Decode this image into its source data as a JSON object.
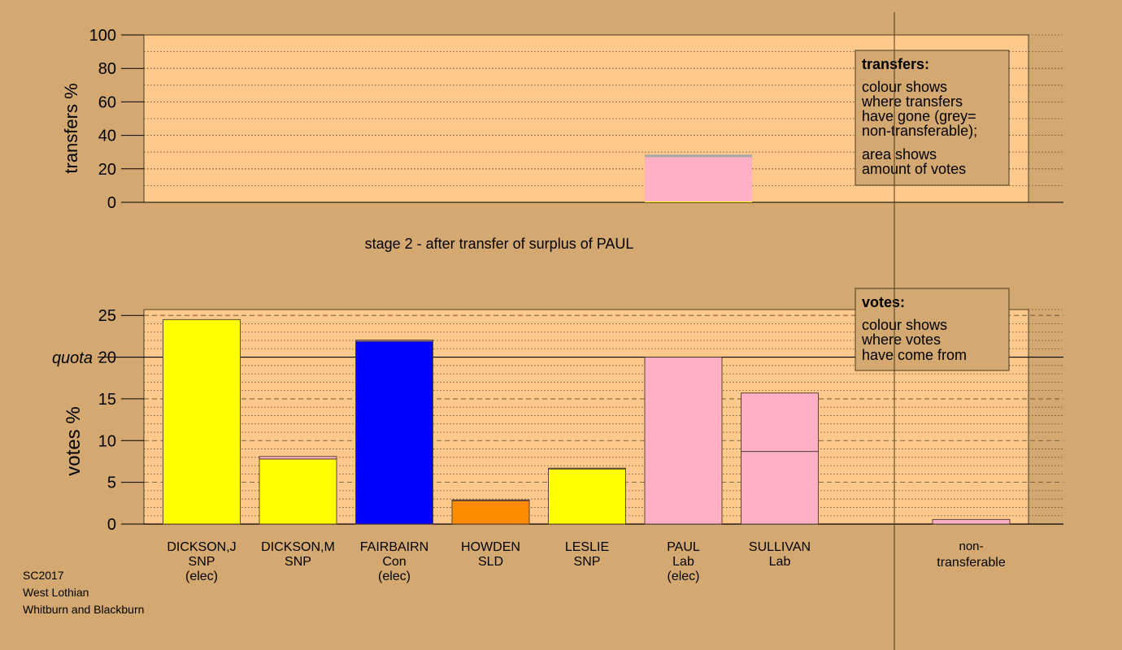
{
  "chart_data": [
    {
      "type": "bar",
      "title": "stage 2 - after transfer of surplus of PAUL",
      "ylabel": "transfers %",
      "ylim": [
        0,
        100
      ],
      "yticks": [
        0,
        20,
        40,
        60,
        80,
        100
      ],
      "grid": true,
      "bars": [
        {
          "index": 5,
          "segments": [
            {
              "name": "yellow",
              "value": 0.5,
              "color": "#ffff00"
            },
            {
              "name": "pink",
              "value": 26.5,
              "color": "#ffb0c4"
            },
            {
              "name": "grey",
              "value": 1.5,
              "color": "#a8a8a8"
            }
          ]
        }
      ],
      "legend": {
        "title": "transfers:",
        "lines1": [
          "colour shows",
          "where transfers",
          "have gone (grey=",
          "non-transferable);"
        ],
        "lines2": [
          "area shows",
          "amount of votes"
        ],
        "placement": "top-right"
      }
    },
    {
      "type": "bar",
      "ylabel": "votes %",
      "ylim": [
        0,
        25
      ],
      "yticks": [
        0,
        5,
        10,
        15,
        20,
        25
      ],
      "quota": {
        "label": "quota",
        "value": 20
      },
      "grid": true,
      "bars": [
        {
          "name": "DICKSON,J",
          "party": "SNP",
          "status": "(elec)",
          "segments": [
            {
              "value": 24.5,
              "color": "#ffff00"
            }
          ]
        },
        {
          "name": "DICKSON,M",
          "party": "SNP",
          "status": "",
          "segments": [
            {
              "value": 7.8,
              "color": "#ffff00"
            },
            {
              "value": 0.3,
              "color": "#ffb0c4"
            }
          ]
        },
        {
          "name": "FAIRBAIRN",
          "party": "Con",
          "status": "(elec)",
          "segments": [
            {
              "value": 21.9,
              "color": "#0000ff"
            },
            {
              "value": 0.15,
              "color": "#ffb0c4"
            }
          ]
        },
        {
          "name": "HOWDEN",
          "party": "SLD",
          "status": "",
          "segments": [
            {
              "value": 2.8,
              "color": "#ff8c00"
            },
            {
              "value": 0.1,
              "color": "#ffb0c4"
            }
          ]
        },
        {
          "name": "LESLIE",
          "party": "SNP",
          "status": "",
          "segments": [
            {
              "value": 6.6,
              "color": "#ffff00"
            },
            {
              "value": 0.1,
              "color": "#ffb0c4"
            }
          ]
        },
        {
          "name": "PAUL",
          "party": "Lab",
          "status": "(elec)",
          "segments": [
            {
              "value": 20.0,
              "color": "#ffb0c4"
            }
          ]
        },
        {
          "name": "SULLIVAN",
          "party": "Lab",
          "status": "",
          "segments": [
            {
              "value": 8.7,
              "color": "#ffb0c4"
            },
            {
              "value": 7.0,
              "color": "#ffb0c4"
            }
          ]
        }
      ],
      "nontransferable": {
        "label1": "non-",
        "label2": "transferable",
        "value": 0.55,
        "color": "#ffb0c4"
      },
      "legend": {
        "title": "votes:",
        "lines": [
          "colour shows",
          "where votes",
          "have come from"
        ],
        "placement": "top-right"
      }
    }
  ],
  "footer": [
    "SC2017",
    "West Lothian",
    "Whitburn and Blackburn"
  ]
}
